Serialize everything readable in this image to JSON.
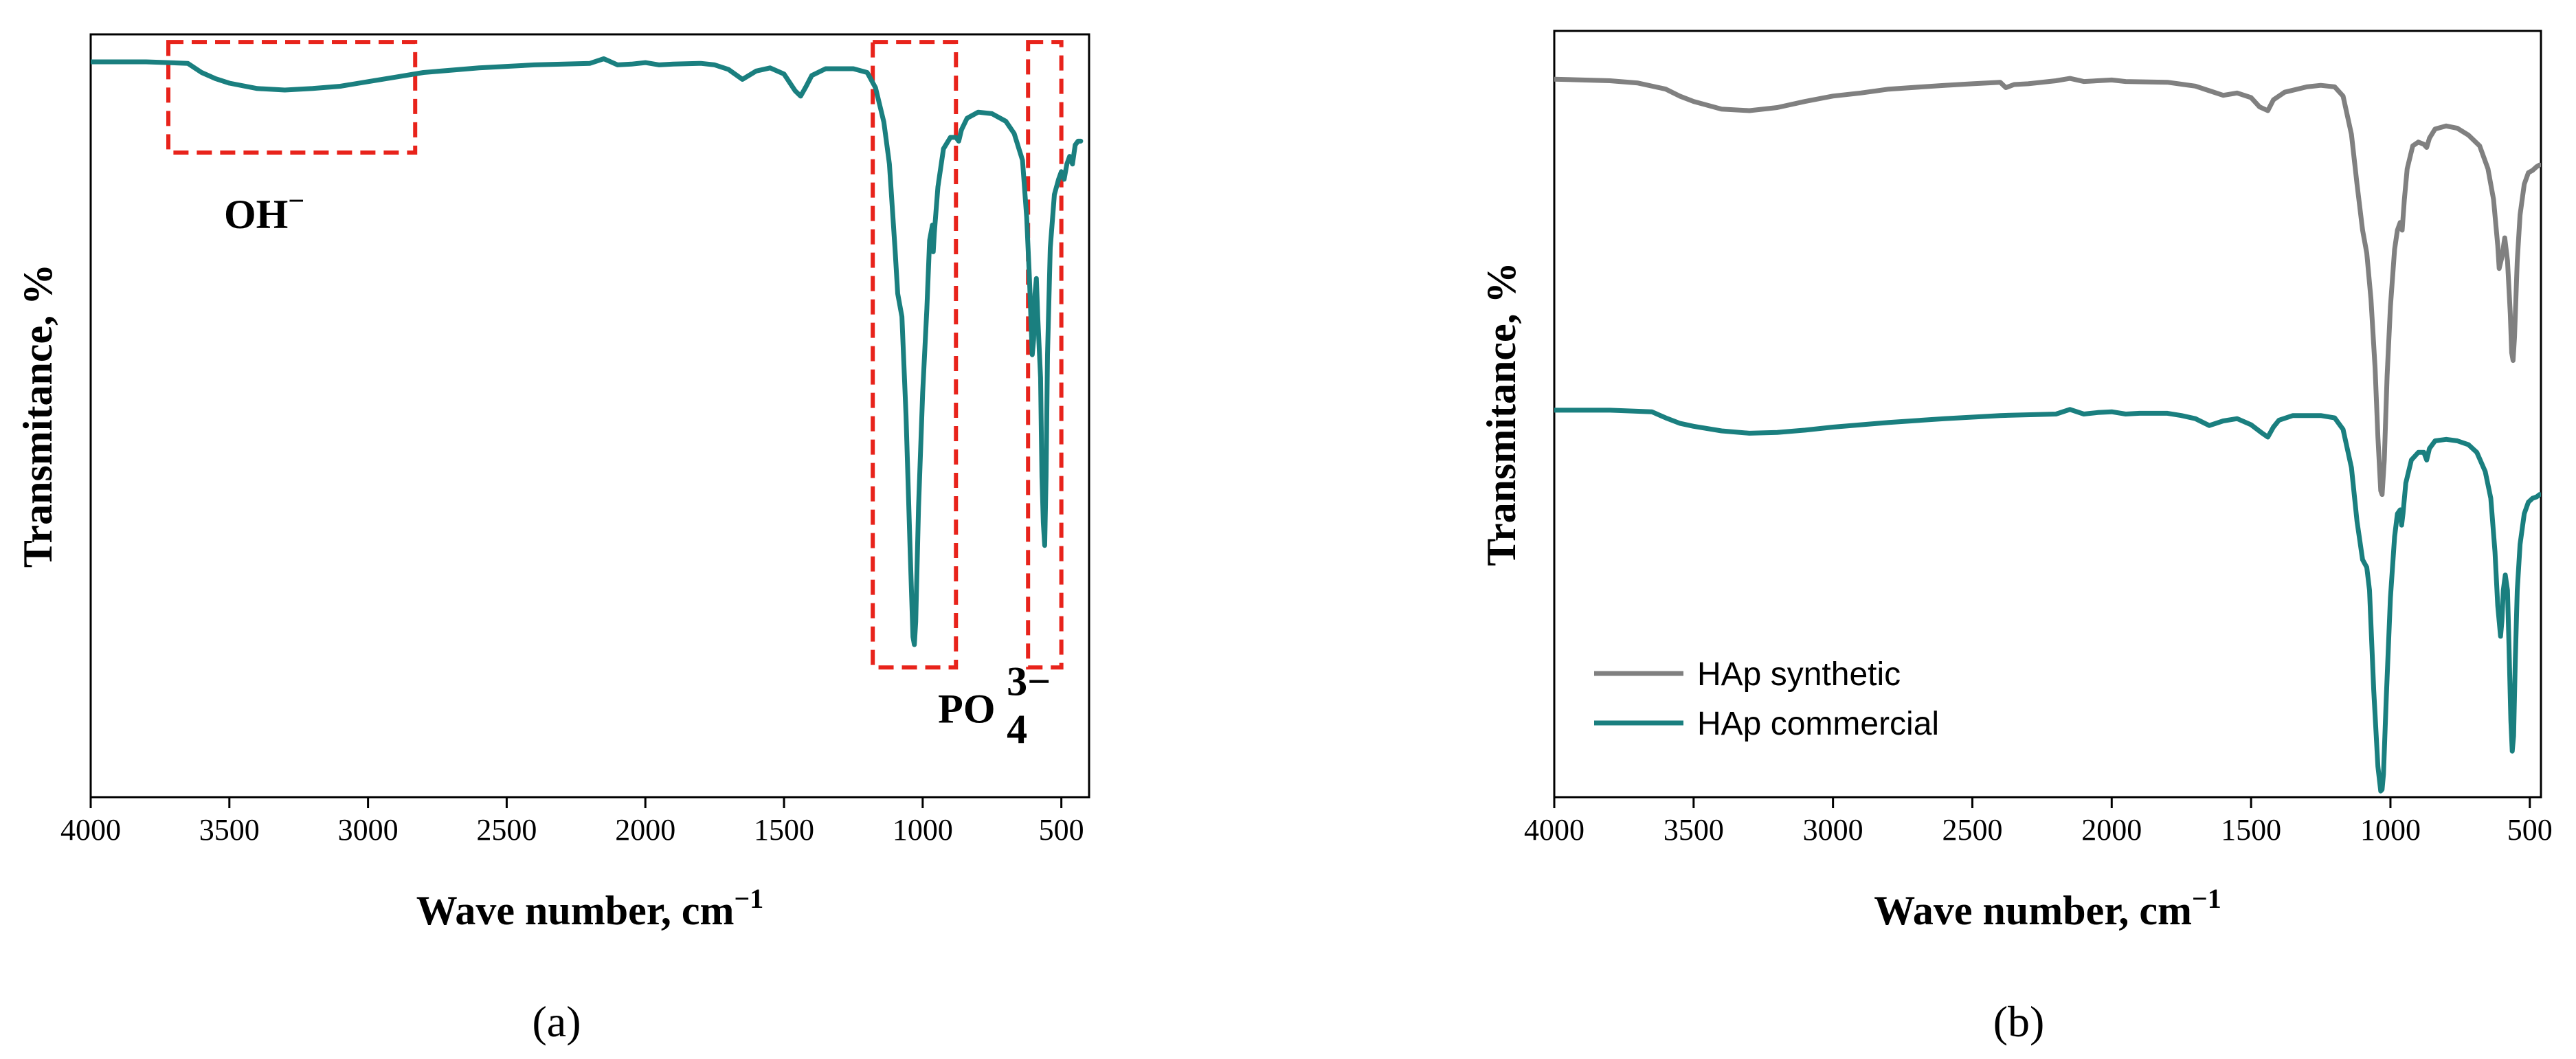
{
  "chart_data": [
    {
      "panel": "(a)",
      "type": "line",
      "xlabel": "Wave number, cm",
      "xlabel_sup": "−1",
      "ylabel": "Transmitance, %",
      "xlim": [
        4000,
        400
      ],
      "ylim": [
        0,
        100
      ],
      "xticks": [
        4000,
        3500,
        3000,
        2500,
        2000,
        1500,
        1000,
        500
      ],
      "x_reversed": true,
      "y_tick_labels": false,
      "color_series": "#1a7f7f",
      "color_box": "#e8231b",
      "series": [
        {
          "name": "HAp commercial",
          "points": [
            [
              4000,
              96.4
            ],
            [
              3800,
              96.4
            ],
            [
              3650,
              96.2
            ],
            [
              3600,
              95.0
            ],
            [
              3550,
              94.2
            ],
            [
              3500,
              93.6
            ],
            [
              3400,
              92.9
            ],
            [
              3300,
              92.7
            ],
            [
              3200,
              92.9
            ],
            [
              3100,
              93.2
            ],
            [
              3000,
              93.8
            ],
            [
              2900,
              94.4
            ],
            [
              2800,
              95.0
            ],
            [
              2600,
              95.6
            ],
            [
              2400,
              96.0
            ],
            [
              2200,
              96.2
            ],
            [
              2150,
              96.8
            ],
            [
              2100,
              96.0
            ],
            [
              2050,
              96.1
            ],
            [
              2000,
              96.3
            ],
            [
              1950,
              96.0
            ],
            [
              1900,
              96.1
            ],
            [
              1800,
              96.2
            ],
            [
              1750,
              96.0
            ],
            [
              1700,
              95.4
            ],
            [
              1650,
              94.1
            ],
            [
              1600,
              95.2
            ],
            [
              1550,
              95.6
            ],
            [
              1500,
              94.8
            ],
            [
              1460,
              92.6
            ],
            [
              1440,
              91.9
            ],
            [
              1420,
              93.2
            ],
            [
              1400,
              94.6
            ],
            [
              1350,
              95.5
            ],
            [
              1250,
              95.5
            ],
            [
              1200,
              95.0
            ],
            [
              1170,
              93.0
            ],
            [
              1140,
              88.5
            ],
            [
              1120,
              83.0
            ],
            [
              1100,
              72.0
            ],
            [
              1090,
              66.0
            ],
            [
              1075,
              63.0
            ],
            [
              1060,
              50.0
            ],
            [
              1045,
              32.0
            ],
            [
              1035,
              21.0
            ],
            [
              1030,
              20.0
            ],
            [
              1025,
              23.0
            ],
            [
              1015,
              38.0
            ],
            [
              1000,
              53.0
            ],
            [
              985,
              64.0
            ],
            [
              975,
              73.0
            ],
            [
              965,
              75.0
            ],
            [
              962,
              71.5
            ],
            [
              958,
              74.0
            ],
            [
              945,
              80.0
            ],
            [
              925,
              85.0
            ],
            [
              900,
              86.5
            ],
            [
              880,
              86.5
            ],
            [
              870,
              86.0
            ],
            [
              860,
              87.5
            ],
            [
              840,
              89.0
            ],
            [
              800,
              89.8
            ],
            [
              750,
              89.6
            ],
            [
              700,
              88.6
            ],
            [
              670,
              87.0
            ],
            [
              640,
              83.5
            ],
            [
              625,
              76.0
            ],
            [
              615,
              68.0
            ],
            [
              605,
              58.0
            ],
            [
              600,
              60.0
            ],
            [
              595,
              66.0
            ],
            [
              590,
              68.0
            ],
            [
              585,
              63.0
            ],
            [
              575,
              55.0
            ],
            [
              570,
              42.0
            ],
            [
              565,
              36.0
            ],
            [
              560,
              33.0
            ],
            [
              555,
              42.0
            ],
            [
              550,
              58.0
            ],
            [
              540,
              72.0
            ],
            [
              525,
              79.0
            ],
            [
              510,
              81.0
            ],
            [
              500,
              82.0
            ],
            [
              490,
              81.0
            ],
            [
              480,
              83.0
            ],
            [
              470,
              84.0
            ],
            [
              460,
              83.0
            ],
            [
              450,
              85.5
            ],
            [
              440,
              86.0
            ],
            [
              430,
              86.0
            ]
          ]
        }
      ],
      "boxes": [
        {
          "label": "OH",
          "label_sup": "−",
          "x0": 3720,
          "x1": 2830,
          "y0": 84.5,
          "y1": 99.0
        },
        {
          "label": "PO",
          "label_sub": "4",
          "label_sup": "3−",
          "x0": 1180,
          "x1": 880,
          "y0": 17.0,
          "y1": 99.0
        },
        {
          "label": "",
          "x0": 620,
          "x1": 500,
          "y0": 17.0,
          "y1": 99.0
        }
      ]
    },
    {
      "panel": "(b)",
      "type": "line",
      "xlabel": "Wave number, cm",
      "xlabel_sup": "−1",
      "ylabel": "Transmitance, %",
      "xlim": [
        4000,
        460
      ],
      "ylim": [
        0,
        100
      ],
      "xticks": [
        4000,
        3500,
        3000,
        2500,
        2000,
        1500,
        1000,
        500
      ],
      "x_reversed": true,
      "y_tick_labels": false,
      "legend_position": "bottom-left",
      "series": [
        {
          "name": "HAp synthetic",
          "color": "#808080",
          "points": [
            [
              4000,
              93.7
            ],
            [
              3800,
              93.5
            ],
            [
              3700,
              93.2
            ],
            [
              3600,
              92.4
            ],
            [
              3550,
              91.5
            ],
            [
              3500,
              90.8
            ],
            [
              3400,
              89.8
            ],
            [
              3300,
              89.6
            ],
            [
              3200,
              90.0
            ],
            [
              3100,
              90.8
            ],
            [
              3000,
              91.5
            ],
            [
              2900,
              91.9
            ],
            [
              2800,
              92.4
            ],
            [
              2600,
              92.9
            ],
            [
              2500,
              93.1
            ],
            [
              2400,
              93.3
            ],
            [
              2380,
              92.6
            ],
            [
              2350,
              93.0
            ],
            [
              2300,
              93.1
            ],
            [
              2200,
              93.5
            ],
            [
              2150,
              93.8
            ],
            [
              2100,
              93.4
            ],
            [
              2000,
              93.6
            ],
            [
              1950,
              93.4
            ],
            [
              1800,
              93.3
            ],
            [
              1700,
              92.8
            ],
            [
              1650,
              92.2
            ],
            [
              1600,
              91.6
            ],
            [
              1550,
              91.9
            ],
            [
              1500,
              91.3
            ],
            [
              1470,
              90.1
            ],
            [
              1440,
              89.6
            ],
            [
              1420,
              91.0
            ],
            [
              1380,
              92.0
            ],
            [
              1300,
              92.7
            ],
            [
              1250,
              92.9
            ],
            [
              1200,
              92.7
            ],
            [
              1170,
              91.5
            ],
            [
              1140,
              86.5
            ],
            [
              1120,
              80.0
            ],
            [
              1100,
              74.0
            ],
            [
              1085,
              71.0
            ],
            [
              1070,
              65.0
            ],
            [
              1055,
              56.0
            ],
            [
              1045,
              47.0
            ],
            [
              1035,
              40.0
            ],
            [
              1030,
              39.5
            ],
            [
              1022,
              44.0
            ],
            [
              1012,
              55.0
            ],
            [
              1000,
              64.0
            ],
            [
              985,
              71.5
            ],
            [
              975,
              74.0
            ],
            [
              965,
              75.0
            ],
            [
              958,
              74.0
            ],
            [
              950,
              78.0
            ],
            [
              940,
              82.0
            ],
            [
              920,
              85.0
            ],
            [
              900,
              85.5
            ],
            [
              880,
              85.2
            ],
            [
              870,
              84.8
            ],
            [
              860,
              86.0
            ],
            [
              840,
              87.2
            ],
            [
              800,
              87.6
            ],
            [
              760,
              87.3
            ],
            [
              720,
              86.4
            ],
            [
              680,
              85.0
            ],
            [
              650,
              82.0
            ],
            [
              630,
              78.0
            ],
            [
              615,
              72.0
            ],
            [
              610,
              69.0
            ],
            [
              600,
              70.5
            ],
            [
              590,
              73.0
            ],
            [
              580,
              70.0
            ],
            [
              570,
              63.0
            ],
            [
              565,
              58.0
            ],
            [
              560,
              57.0
            ],
            [
              555,
              60.0
            ],
            [
              545,
              70.0
            ],
            [
              535,
              76.0
            ],
            [
              520,
              80.0
            ],
            [
              505,
              81.5
            ],
            [
              490,
              81.8
            ],
            [
              475,
              82.3
            ],
            [
              465,
              82.5
            ]
          ]
        },
        {
          "name": "HAp commercial",
          "color": "#1a7f7f",
          "points": [
            [
              4000,
              50.5
            ],
            [
              3800,
              50.5
            ],
            [
              3650,
              50.3
            ],
            [
              3600,
              49.5
            ],
            [
              3550,
              48.8
            ],
            [
              3500,
              48.4
            ],
            [
              3400,
              47.8
            ],
            [
              3300,
              47.5
            ],
            [
              3200,
              47.6
            ],
            [
              3100,
              47.9
            ],
            [
              3000,
              48.3
            ],
            [
              2900,
              48.6
            ],
            [
              2800,
              48.9
            ],
            [
              2600,
              49.4
            ],
            [
              2400,
              49.8
            ],
            [
              2200,
              50.0
            ],
            [
              2150,
              50.6
            ],
            [
              2100,
              50.0
            ],
            [
              2050,
              50.2
            ],
            [
              2000,
              50.3
            ],
            [
              1950,
              50.0
            ],
            [
              1900,
              50.1
            ],
            [
              1800,
              50.1
            ],
            [
              1750,
              49.8
            ],
            [
              1700,
              49.4
            ],
            [
              1650,
              48.5
            ],
            [
              1600,
              49.1
            ],
            [
              1550,
              49.4
            ],
            [
              1500,
              48.6
            ],
            [
              1460,
              47.5
            ],
            [
              1440,
              47.0
            ],
            [
              1420,
              48.3
            ],
            [
              1400,
              49.2
            ],
            [
              1350,
              49.8
            ],
            [
              1250,
              49.8
            ],
            [
              1200,
              49.5
            ],
            [
              1170,
              48.0
            ],
            [
              1140,
              43.0
            ],
            [
              1120,
              36.0
            ],
            [
              1100,
              31.0
            ],
            [
              1085,
              30.0
            ],
            [
              1075,
              27.0
            ],
            [
              1060,
              14.0
            ],
            [
              1045,
              4.0
            ],
            [
              1035,
              0.8
            ],
            [
              1030,
              1.0
            ],
            [
              1025,
              3.0
            ],
            [
              1015,
              13.0
            ],
            [
              1000,
              26.0
            ],
            [
              985,
              34.0
            ],
            [
              975,
              37.0
            ],
            [
              965,
              37.5
            ],
            [
              960,
              35.5
            ],
            [
              955,
              37.0
            ],
            [
              945,
              41.0
            ],
            [
              925,
              44.0
            ],
            [
              900,
              45.0
            ],
            [
              880,
              45.0
            ],
            [
              870,
              44.0
            ],
            [
              860,
              45.5
            ],
            [
              840,
              46.5
            ],
            [
              800,
              46.7
            ],
            [
              760,
              46.5
            ],
            [
              720,
              46.0
            ],
            [
              690,
              45.0
            ],
            [
              660,
              42.5
            ],
            [
              640,
              39.0
            ],
            [
              625,
              32.0
            ],
            [
              615,
              25.0
            ],
            [
              605,
              21.0
            ],
            [
              600,
              23.0
            ],
            [
              595,
              27.0
            ],
            [
              588,
              29.0
            ],
            [
              580,
              27.0
            ],
            [
              575,
              20.0
            ],
            [
              568,
              10.0
            ],
            [
              563,
              6.0
            ],
            [
              558,
              8.0
            ],
            [
              552,
              18.0
            ],
            [
              545,
              27.0
            ],
            [
              535,
              33.0
            ],
            [
              520,
              37.0
            ],
            [
              505,
              38.5
            ],
            [
              490,
              39.0
            ],
            [
              475,
              39.2
            ],
            [
              465,
              39.5
            ]
          ]
        }
      ]
    }
  ]
}
